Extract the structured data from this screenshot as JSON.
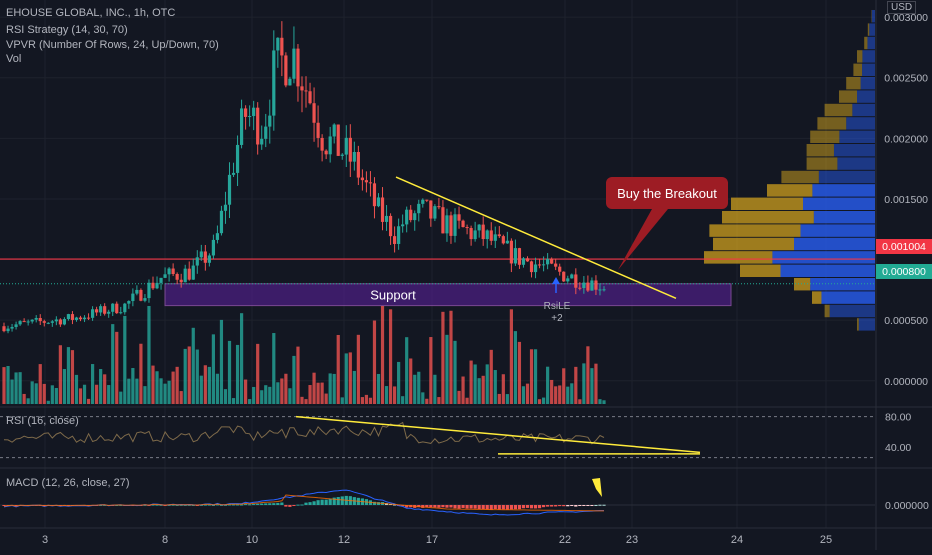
{
  "legend": {
    "symbol": "EHOUSE GLOBAL, INC., 1h, OTC",
    "rsi_strategy": "RSI Strategy (14, 30, 70)",
    "vpvr": "VPVR (Number Of Rows, 24, Up/Down, 70)",
    "vol": "Vol"
  },
  "currency": "USD",
  "annotations": {
    "callout": "Buy the Breakout",
    "support": "Support",
    "signal_name": "RsiLE",
    "signal_qty": "+2"
  },
  "price_axis": {
    "ticks": [
      "0.003000",
      "0.002500",
      "0.002000",
      "0.001500",
      "0.000500",
      "0.000000"
    ],
    "resistance_tag": "0.001004",
    "last_price_tag": "0.000800"
  },
  "rsi_pane": {
    "label": "RSI (16, close)",
    "ticks": [
      "80.00",
      "40.00"
    ]
  },
  "macd_pane": {
    "label": "MACD (12, 26, close, 27)",
    "ticks": [
      "0.000000"
    ]
  },
  "time_axis": [
    "3",
    "8",
    "10",
    "12",
    "17",
    "22",
    "23",
    "24",
    "25"
  ],
  "colors": {
    "background": "#131722",
    "up": "#26a69a",
    "down": "#ef5350",
    "resistance": "#f23645",
    "support_zone": "#4a1e80",
    "trendline": "#ffeb3b",
    "callout": "#9d1c24",
    "vpvr_up": "#2962ff",
    "vpvr_down": "#c79a1e",
    "last_price": "#22ab94"
  },
  "chart_data": {
    "type": "candlestick",
    "price_range": [
      -0.0002,
      0.0031
    ],
    "resistance_level": 0.001004,
    "support_zone": [
      0.00062,
      0.0008
    ],
    "last_price": 0.0008,
    "anchor_candles": [
      {
        "label": "start",
        "price": 0.00045
      },
      {
        "label": "8",
        "price": 0.0007
      },
      {
        "label": "10",
        "price": 0.0022
      },
      {
        "label": "peak",
        "price": 0.0029
      },
      {
        "label": "12",
        "price": 0.0011
      },
      {
        "label": "17",
        "price": 0.0013
      },
      {
        "label": "22",
        "price": 0.00075
      }
    ],
    "rsi_range": [
      15,
      90
    ],
    "rsi_levels": [
      80,
      40,
      30,
      70
    ],
    "macd_zero": 0
  }
}
